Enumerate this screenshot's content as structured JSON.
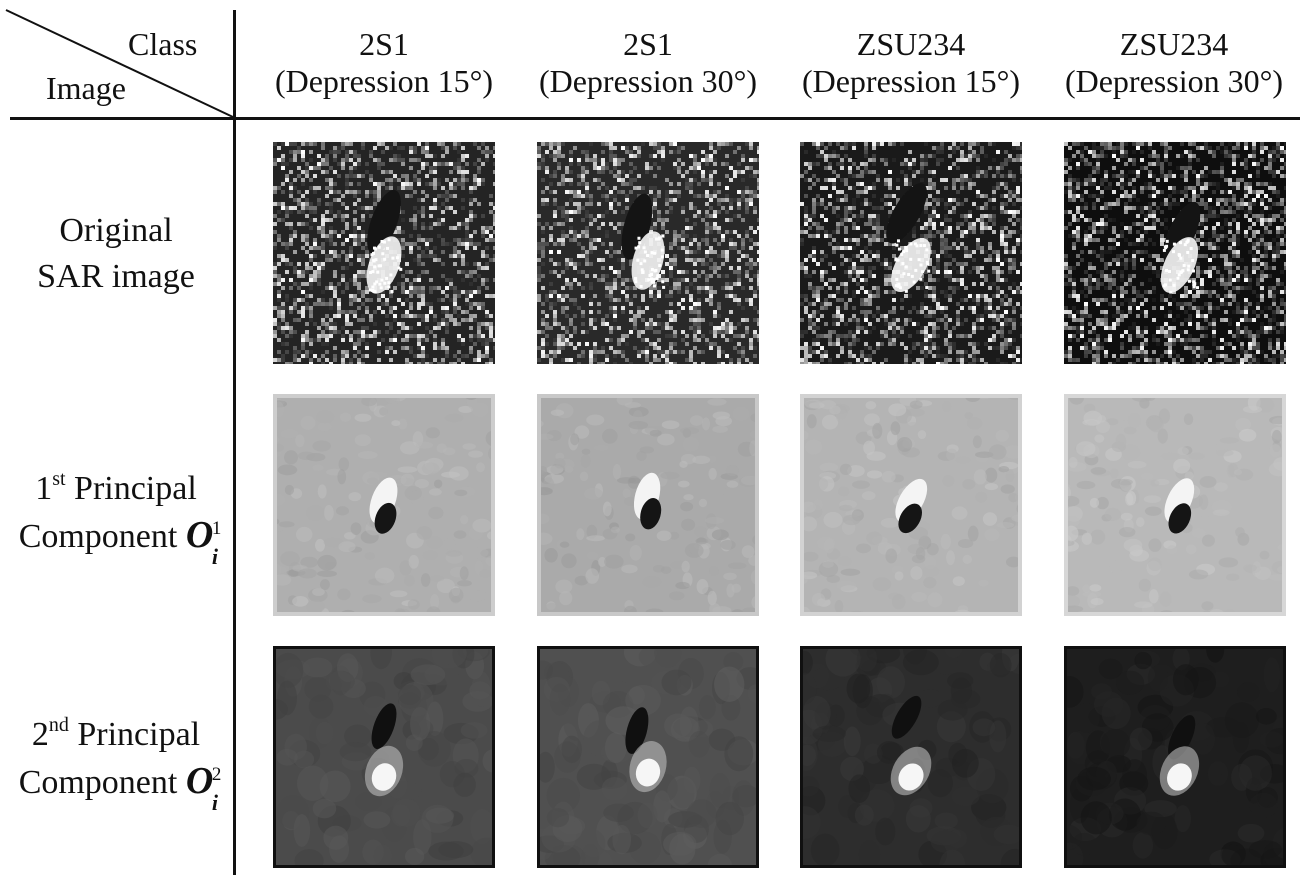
{
  "header": {
    "corner_class": "Class",
    "corner_image": "Image"
  },
  "columns": [
    {
      "line1": "2S1",
      "line2": "(Depression 15°)"
    },
    {
      "line1": "2S1",
      "line2": "(Depression 30°)"
    },
    {
      "line1": "ZSU234",
      "line2": "(Depression 15°)"
    },
    {
      "line1": "ZSU234",
      "line2": "(Depression 30°)"
    }
  ],
  "rows": [
    {
      "line1": "Original",
      "line2": "SAR image"
    },
    {
      "ordinal_num": "1",
      "ordinal_suffix": "st",
      "line1_rest": " Principal",
      "line2": "Component ",
      "symbol": "O",
      "symbol_sub": "i",
      "symbol_sup": "1"
    },
    {
      "ordinal_num": "2",
      "ordinal_suffix": "nd",
      "line1_rest": " Principal",
      "line2": "Component ",
      "symbol": "O",
      "symbol_sub": "i",
      "symbol_sup": "2"
    }
  ]
}
